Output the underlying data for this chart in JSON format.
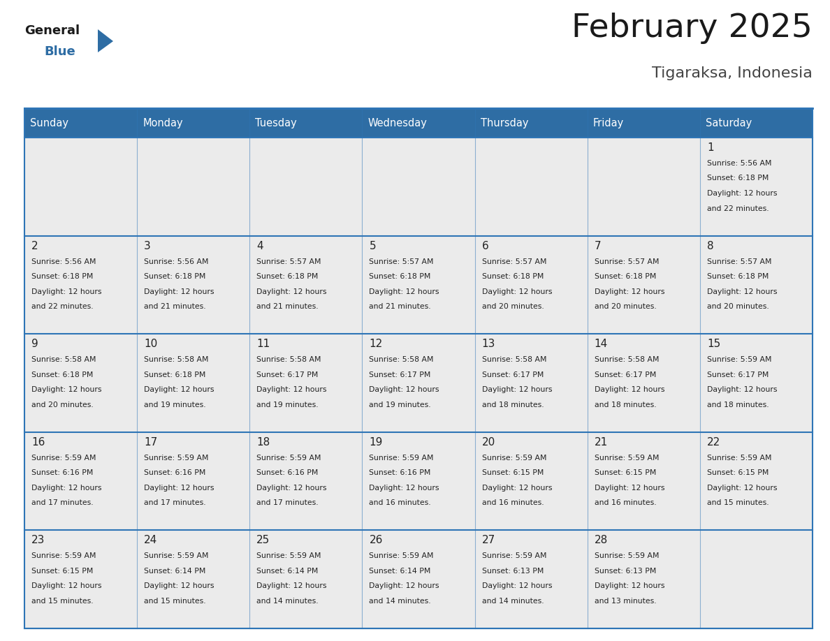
{
  "title": "February 2025",
  "subtitle": "Tigaraksa, Indonesia",
  "header_bg": "#2E6DA4",
  "header_text_color": "#FFFFFF",
  "cell_bg": "#EBEBEB",
  "cell_bg_alt": "#FFFFFF",
  "border_color": "#2E75B6",
  "day_headers": [
    "Sunday",
    "Monday",
    "Tuesday",
    "Wednesday",
    "Thursday",
    "Friday",
    "Saturday"
  ],
  "title_color": "#1a1a1a",
  "subtitle_color": "#444444",
  "day_num_color": "#222222",
  "info_color": "#222222",
  "logo_general_color": "#1a1a1a",
  "logo_blue_color": "#2E6DA4",
  "weeks": [
    [
      {
        "day": null,
        "info": ""
      },
      {
        "day": null,
        "info": ""
      },
      {
        "day": null,
        "info": ""
      },
      {
        "day": null,
        "info": ""
      },
      {
        "day": null,
        "info": ""
      },
      {
        "day": null,
        "info": ""
      },
      {
        "day": 1,
        "info": "Sunrise: 5:56 AM\nSunset: 6:18 PM\nDaylight: 12 hours\nand 22 minutes."
      }
    ],
    [
      {
        "day": 2,
        "info": "Sunrise: 5:56 AM\nSunset: 6:18 PM\nDaylight: 12 hours\nand 22 minutes."
      },
      {
        "day": 3,
        "info": "Sunrise: 5:56 AM\nSunset: 6:18 PM\nDaylight: 12 hours\nand 21 minutes."
      },
      {
        "day": 4,
        "info": "Sunrise: 5:57 AM\nSunset: 6:18 PM\nDaylight: 12 hours\nand 21 minutes."
      },
      {
        "day": 5,
        "info": "Sunrise: 5:57 AM\nSunset: 6:18 PM\nDaylight: 12 hours\nand 21 minutes."
      },
      {
        "day": 6,
        "info": "Sunrise: 5:57 AM\nSunset: 6:18 PM\nDaylight: 12 hours\nand 20 minutes."
      },
      {
        "day": 7,
        "info": "Sunrise: 5:57 AM\nSunset: 6:18 PM\nDaylight: 12 hours\nand 20 minutes."
      },
      {
        "day": 8,
        "info": "Sunrise: 5:57 AM\nSunset: 6:18 PM\nDaylight: 12 hours\nand 20 minutes."
      }
    ],
    [
      {
        "day": 9,
        "info": "Sunrise: 5:58 AM\nSunset: 6:18 PM\nDaylight: 12 hours\nand 20 minutes."
      },
      {
        "day": 10,
        "info": "Sunrise: 5:58 AM\nSunset: 6:18 PM\nDaylight: 12 hours\nand 19 minutes."
      },
      {
        "day": 11,
        "info": "Sunrise: 5:58 AM\nSunset: 6:17 PM\nDaylight: 12 hours\nand 19 minutes."
      },
      {
        "day": 12,
        "info": "Sunrise: 5:58 AM\nSunset: 6:17 PM\nDaylight: 12 hours\nand 19 minutes."
      },
      {
        "day": 13,
        "info": "Sunrise: 5:58 AM\nSunset: 6:17 PM\nDaylight: 12 hours\nand 18 minutes."
      },
      {
        "day": 14,
        "info": "Sunrise: 5:58 AM\nSunset: 6:17 PM\nDaylight: 12 hours\nand 18 minutes."
      },
      {
        "day": 15,
        "info": "Sunrise: 5:59 AM\nSunset: 6:17 PM\nDaylight: 12 hours\nand 18 minutes."
      }
    ],
    [
      {
        "day": 16,
        "info": "Sunrise: 5:59 AM\nSunset: 6:16 PM\nDaylight: 12 hours\nand 17 minutes."
      },
      {
        "day": 17,
        "info": "Sunrise: 5:59 AM\nSunset: 6:16 PM\nDaylight: 12 hours\nand 17 minutes."
      },
      {
        "day": 18,
        "info": "Sunrise: 5:59 AM\nSunset: 6:16 PM\nDaylight: 12 hours\nand 17 minutes."
      },
      {
        "day": 19,
        "info": "Sunrise: 5:59 AM\nSunset: 6:16 PM\nDaylight: 12 hours\nand 16 minutes."
      },
      {
        "day": 20,
        "info": "Sunrise: 5:59 AM\nSunset: 6:15 PM\nDaylight: 12 hours\nand 16 minutes."
      },
      {
        "day": 21,
        "info": "Sunrise: 5:59 AM\nSunset: 6:15 PM\nDaylight: 12 hours\nand 16 minutes."
      },
      {
        "day": 22,
        "info": "Sunrise: 5:59 AM\nSunset: 6:15 PM\nDaylight: 12 hours\nand 15 minutes."
      }
    ],
    [
      {
        "day": 23,
        "info": "Sunrise: 5:59 AM\nSunset: 6:15 PM\nDaylight: 12 hours\nand 15 minutes."
      },
      {
        "day": 24,
        "info": "Sunrise: 5:59 AM\nSunset: 6:14 PM\nDaylight: 12 hours\nand 15 minutes."
      },
      {
        "day": 25,
        "info": "Sunrise: 5:59 AM\nSunset: 6:14 PM\nDaylight: 12 hours\nand 14 minutes."
      },
      {
        "day": 26,
        "info": "Sunrise: 5:59 AM\nSunset: 6:14 PM\nDaylight: 12 hours\nand 14 minutes."
      },
      {
        "day": 27,
        "info": "Sunrise: 5:59 AM\nSunset: 6:13 PM\nDaylight: 12 hours\nand 14 minutes."
      },
      {
        "day": 28,
        "info": "Sunrise: 5:59 AM\nSunset: 6:13 PM\nDaylight: 12 hours\nand 13 minutes."
      },
      {
        "day": null,
        "info": ""
      }
    ]
  ]
}
